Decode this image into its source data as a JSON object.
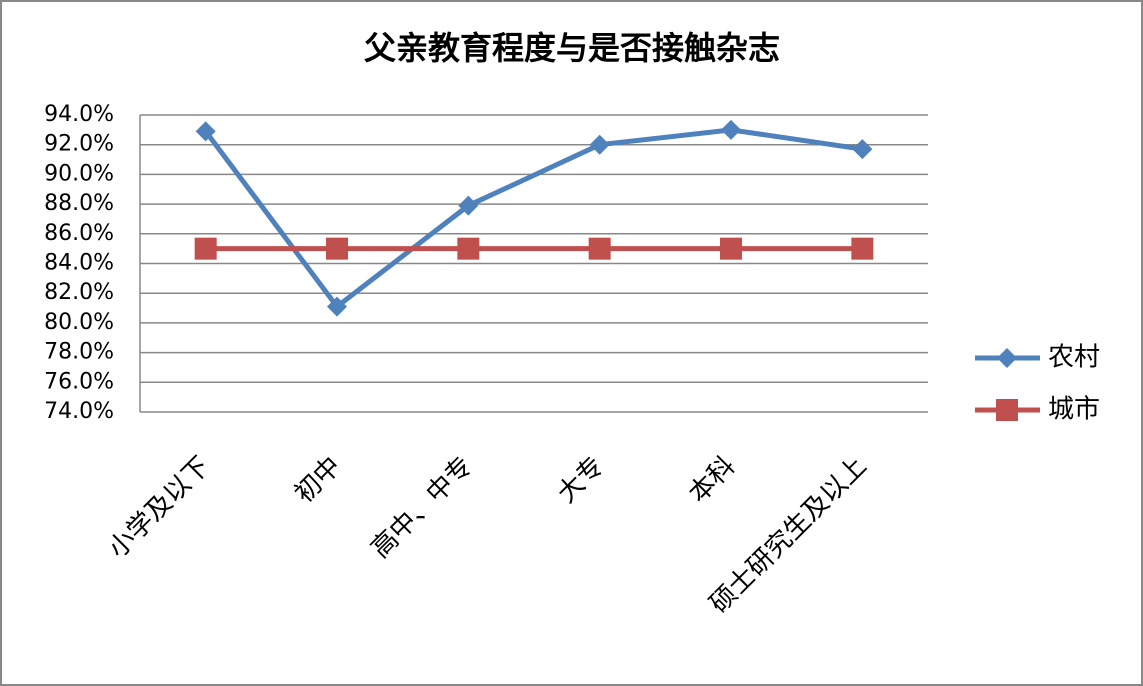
{
  "chart_data": {
    "type": "line",
    "title": "父亲教育程度与是否接触杂志",
    "categories": [
      "小学及以下",
      "初中",
      "高中、中专",
      "大专",
      "本科",
      "硕士研究生及以上"
    ],
    "series": [
      {
        "name": "农村",
        "color": "#4f81bd",
        "marker": "diamond",
        "values": [
          92.9,
          81.1,
          87.9,
          92.0,
          93.0,
          91.7
        ]
      },
      {
        "name": "城市",
        "color": "#c0504d",
        "marker": "square",
        "values": [
          85.0,
          85.0,
          85.0,
          85.0,
          85.0,
          85.0
        ]
      }
    ],
    "ylim": [
      74,
      94
    ],
    "yticks": [
      {
        "value": 74,
        "label": "74.0%"
      },
      {
        "value": 76,
        "label": "76.0%"
      },
      {
        "value": 78,
        "label": "78.0%"
      },
      {
        "value": 80,
        "label": "80.0%"
      },
      {
        "value": 82,
        "label": "82.0%"
      },
      {
        "value": 84,
        "label": "84.0%"
      },
      {
        "value": 86,
        "label": "86.0%"
      },
      {
        "value": 88,
        "label": "88.0%"
      },
      {
        "value": 90,
        "label": "90.0%"
      },
      {
        "value": 92,
        "label": "92.0%"
      },
      {
        "value": 94,
        "label": "94.0%"
      }
    ],
    "grid": true,
    "legend": "right"
  }
}
